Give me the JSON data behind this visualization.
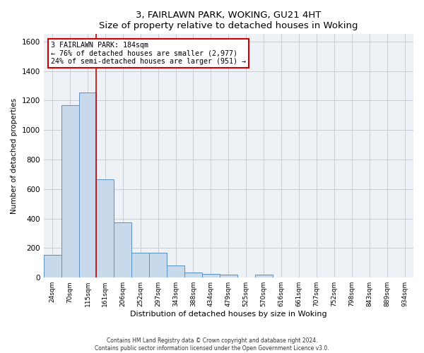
{
  "title": "3, FAIRLAWN PARK, WOKING, GU21 4HT",
  "subtitle": "Size of property relative to detached houses in Woking",
  "xlabel": "Distribution of detached houses by size in Woking",
  "ylabel": "Number of detached properties",
  "categories": [
    "24sqm",
    "70sqm",
    "115sqm",
    "161sqm",
    "206sqm",
    "252sqm",
    "297sqm",
    "343sqm",
    "388sqm",
    "434sqm",
    "479sqm",
    "525sqm",
    "570sqm",
    "616sqm",
    "661sqm",
    "707sqm",
    "752sqm",
    "798sqm",
    "843sqm",
    "889sqm",
    "934sqm"
  ],
  "values": [
    155,
    1170,
    1255,
    665,
    375,
    170,
    170,
    80,
    35,
    25,
    20,
    0,
    20,
    0,
    0,
    0,
    0,
    0,
    0,
    0,
    0
  ],
  "bar_color": "#c9d9ec",
  "bar_edge_color": "#5a8fc2",
  "grid_color": "#c8cdd4",
  "background_color": "#eef2f7",
  "annotation_box_color": "#cc0000",
  "annotation_text_line1": "3 FAIRLAWN PARK: 184sqm",
  "annotation_text_line2": "← 76% of detached houses are smaller (2,977)",
  "annotation_text_line3": "24% of semi-detached houses are larger (951) →",
  "vline_x": 2.5,
  "ylim": [
    0,
    1650
  ],
  "yticks": [
    0,
    200,
    400,
    600,
    800,
    1000,
    1200,
    1400,
    1600
  ],
  "footer_line1": "Contains HM Land Registry data © Crown copyright and database right 2024.",
  "footer_line2": "Contains public sector information licensed under the Open Government Licence v3.0."
}
